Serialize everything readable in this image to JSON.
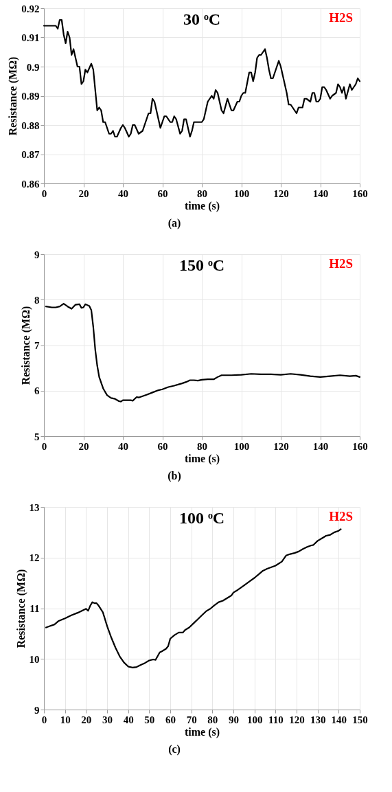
{
  "chart_data": [
    {
      "type": "line",
      "title": "30 ᵒC",
      "xlabel": "time (s)",
      "ylabel": "Resistance (MΩ)",
      "annotations": [
        "H2S",
        "(a)"
      ],
      "xlim": [
        0,
        160
      ],
      "xticks": [
        0,
        20,
        40,
        60,
        80,
        100,
        120,
        140,
        160
      ],
      "ylim": [
        0.86,
        0.92
      ],
      "yticks": [
        0.86,
        0.87,
        0.88,
        0.89,
        {
          "value": 0.9,
          "label": "0.9"
        },
        0.91,
        0.92
      ],
      "grid": true,
      "line_style": "solid",
      "x": [
        0,
        6,
        7,
        8,
        9,
        10,
        11,
        12,
        13,
        14,
        15,
        17,
        18,
        19,
        20,
        21,
        22,
        24,
        25,
        26,
        27,
        28,
        29,
        30,
        31,
        33,
        34,
        35,
        36,
        37,
        39,
        40,
        41,
        43,
        44,
        45,
        46,
        48,
        50,
        52,
        53,
        54,
        55,
        56,
        58,
        59,
        61,
        62,
        64,
        65,
        66,
        67,
        69,
        70,
        71,
        72,
        74,
        75,
        76,
        80,
        81,
        83,
        85,
        86,
        87,
        88,
        90,
        91,
        93,
        95,
        96,
        98,
        99,
        100,
        101,
        102,
        104,
        105,
        106,
        107,
        108,
        109,
        110,
        112,
        113,
        114,
        115,
        116,
        118,
        119,
        120,
        122,
        123,
        124,
        125,
        126,
        128,
        129,
        131,
        132,
        133,
        135,
        136,
        137,
        138,
        139,
        140,
        141,
        142,
        143,
        145,
        146,
        148,
        149,
        150,
        151,
        152,
        153,
        155,
        156,
        158,
        159,
        160
      ],
      "series": [
        {
          "color": "#000000",
          "values": [
            0.914,
            0.914,
            0.913,
            0.916,
            0.916,
            0.911,
            0.908,
            0.912,
            0.91,
            0.904,
            0.906,
            0.9,
            0.9,
            0.894,
            0.895,
            0.899,
            0.898,
            0.901,
            0.899,
            0.892,
            0.885,
            0.886,
            0.885,
            0.881,
            0.881,
            0.877,
            0.877,
            0.878,
            0.876,
            0.876,
            0.879,
            0.88,
            0.879,
            0.876,
            0.877,
            0.88,
            0.88,
            0.877,
            0.878,
            0.882,
            0.884,
            0.884,
            0.889,
            0.888,
            0.882,
            0.879,
            0.883,
            0.883,
            0.881,
            0.881,
            0.883,
            0.882,
            0.877,
            0.878,
            0.882,
            0.882,
            0.876,
            0.878,
            0.881,
            0.881,
            0.882,
            0.888,
            0.89,
            0.889,
            0.892,
            0.891,
            0.885,
            0.884,
            0.889,
            0.885,
            0.885,
            0.888,
            0.888,
            0.89,
            0.891,
            0.891,
            0.898,
            0.898,
            0.895,
            0.898,
            0.903,
            0.904,
            0.904,
            0.906,
            0.903,
            0.899,
            0.896,
            0.896,
            0.9,
            0.902,
            0.9,
            0.894,
            0.891,
            0.887,
            0.887,
            0.886,
            0.884,
            0.886,
            0.886,
            0.889,
            0.889,
            0.888,
            0.891,
            0.891,
            0.888,
            0.888,
            0.889,
            0.893,
            0.893,
            0.892,
            0.889,
            0.89,
            0.891,
            0.894,
            0.893,
            0.891,
            0.893,
            0.889,
            0.894,
            0.892,
            0.894,
            0.896,
            0.895
          ]
        }
      ]
    },
    {
      "type": "line",
      "title": "150 ᵒC",
      "xlabel": "time (s)",
      "ylabel": "Resistance (MΩ)",
      "annotations": [
        "H2S",
        "(b)"
      ],
      "xlim": [
        0,
        160
      ],
      "xticks": [
        0,
        20,
        40,
        60,
        80,
        100,
        120,
        140,
        160
      ],
      "ylim": [
        5,
        9
      ],
      "yticks": [
        5,
        6,
        7,
        8,
        9
      ],
      "grid": true,
      "line_style": "solid",
      "x": [
        1,
        4,
        6,
        8,
        10,
        12,
        14,
        16,
        18,
        19,
        20,
        21,
        23,
        24,
        25,
        26,
        27,
        28,
        30,
        32,
        34,
        36,
        38,
        39,
        40,
        42,
        44,
        45,
        47,
        48,
        50,
        52,
        55,
        58,
        60,
        63,
        66,
        70,
        72,
        74,
        76,
        78,
        80,
        83,
        86,
        88,
        90,
        95,
        100,
        105,
        110,
        115,
        120,
        125,
        130,
        135,
        140,
        145,
        150,
        155,
        158,
        160
      ],
      "series": [
        {
          "color": "#000000",
          "values": [
            7.85,
            7.83,
            7.83,
            7.85,
            7.91,
            7.85,
            7.8,
            7.89,
            7.9,
            7.82,
            7.83,
            7.9,
            7.86,
            7.77,
            7.4,
            6.9,
            6.55,
            6.3,
            6.05,
            5.9,
            5.84,
            5.82,
            5.77,
            5.76,
            5.79,
            5.79,
            5.79,
            5.78,
            5.86,
            5.85,
            5.88,
            5.91,
            5.96,
            6.01,
            6.03,
            6.08,
            6.11,
            6.16,
            6.19,
            6.23,
            6.23,
            6.22,
            6.24,
            6.25,
            6.25,
            6.3,
            6.34,
            6.34,
            6.35,
            6.37,
            6.36,
            6.36,
            6.35,
            6.37,
            6.35,
            6.32,
            6.3,
            6.32,
            6.34,
            6.32,
            6.33,
            6.3
          ]
        }
      ]
    },
    {
      "type": "line",
      "title": "100 ᵒC",
      "xlabel": "time (s)",
      "ylabel": "Resistance (MΩ)",
      "annotations": [
        "H2S",
        "(c)"
      ],
      "xlim": [
        0,
        150
      ],
      "xticks": [
        0,
        10,
        20,
        30,
        40,
        50,
        60,
        70,
        80,
        90,
        100,
        110,
        120,
        130,
        140,
        150
      ],
      "ylim": [
        9,
        13
      ],
      "yticks": [
        9,
        10,
        11,
        12,
        13
      ],
      "grid": true,
      "line_style": "solid",
      "x": [
        1,
        3,
        5,
        7,
        10,
        13,
        16,
        18,
        20,
        21,
        22,
        23,
        24,
        25,
        26,
        28,
        30,
        32,
        34,
        36,
        38,
        40,
        42,
        44,
        46,
        48,
        50,
        52,
        53,
        55,
        56,
        58,
        59,
        60,
        62,
        64,
        66,
        67,
        69,
        71,
        73,
        75,
        77,
        79,
        81,
        83,
        85,
        87,
        89,
        90,
        92,
        95,
        98,
        100,
        102,
        104,
        106,
        108,
        110,
        113,
        115,
        117,
        119,
        121,
        123,
        125,
        127,
        128,
        130,
        132,
        134,
        136,
        138,
        140,
        141
      ],
      "series": [
        {
          "color": "#000000",
          "values": [
            10.62,
            10.65,
            10.68,
            10.75,
            10.8,
            10.86,
            10.91,
            10.95,
            10.99,
            10.95,
            11.05,
            11.12,
            11.1,
            11.1,
            11.05,
            10.92,
            10.65,
            10.42,
            10.22,
            10.05,
            9.93,
            9.85,
            9.83,
            9.84,
            9.88,
            9.92,
            9.97,
            9.99,
            9.98,
            10.13,
            10.15,
            10.2,
            10.25,
            10.4,
            10.47,
            10.52,
            10.52,
            10.57,
            10.62,
            10.7,
            10.78,
            10.86,
            10.94,
            10.99,
            11.06,
            11.12,
            11.15,
            11.2,
            11.25,
            11.31,
            11.36,
            11.45,
            11.54,
            11.6,
            11.67,
            11.74,
            11.78,
            11.81,
            11.84,
            11.92,
            12.04,
            12.07,
            12.09,
            12.12,
            12.17,
            12.21,
            12.24,
            12.25,
            12.33,
            12.38,
            12.43,
            12.45,
            12.5,
            12.53,
            12.56
          ]
        }
      ]
    }
  ]
}
